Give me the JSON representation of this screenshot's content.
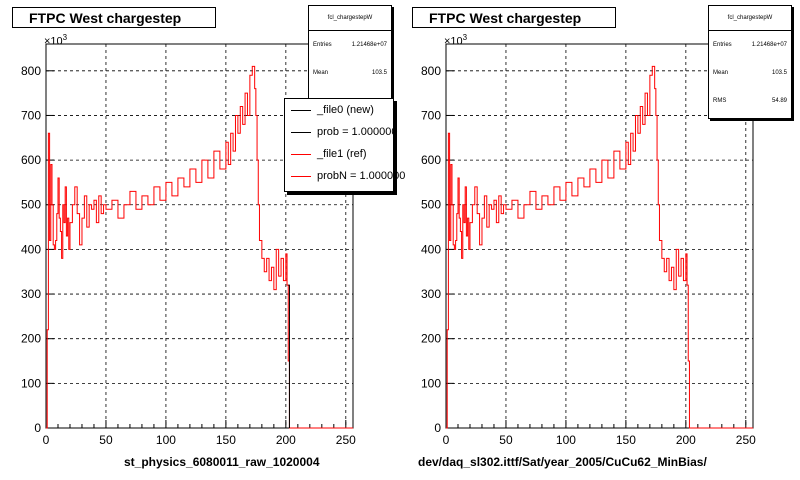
{
  "panels": [
    {
      "title": "FTPC West chargestep",
      "x_label": "st_physics_6080011_raw_1020004",
      "exponent_label": "×10",
      "exponent_sup": "3",
      "stats": {
        "name": "fcl_chargestepW",
        "rows": [
          {
            "label": "Entries",
            "value": "1.21468e+07"
          },
          {
            "label": "Mean",
            "value": "103.5"
          }
        ]
      },
      "legend": [
        {
          "label": "_file0 (new)",
          "color": "#000000"
        },
        {
          "label": "prob = 1.000000",
          "color": "#000000"
        },
        {
          "label": "_file1 (ref)",
          "color": "#ff0000"
        },
        {
          "label": "probN = 1.000000",
          "color": "#ff0000"
        }
      ]
    },
    {
      "title": "FTPC West chargestep",
      "x_label": "dev/daq_sl302.ittf/Sat/year_2005/CuCu62_MinBias/",
      "exponent_label": "×10",
      "exponent_sup": "3",
      "stats": {
        "name": "fcl_chargestepW",
        "rows": [
          {
            "label": "Entries",
            "value": "1.21468e+07"
          },
          {
            "label": "Mean",
            "value": "103.5"
          },
          {
            "label": "RMS",
            "value": "54.89"
          }
        ]
      }
    }
  ],
  "footnote": "",
  "colors": {
    "new": "#000000",
    "ref": "#ff0000",
    "grid": "#000000"
  },
  "chart_data": [
    {
      "type": "line",
      "title": "FTPC West chargestep",
      "xlabel": "st_physics_6080011_raw_1020004",
      "ylabel": "",
      "xlim": [
        0,
        256
      ],
      "ylim": [
        0,
        860
      ],
      "xticks": [
        0,
        50,
        100,
        150,
        200,
        250
      ],
      "yticks": [
        0,
        100,
        200,
        300,
        400,
        500,
        600,
        700,
        800
      ],
      "y_multiplier": "×10^3",
      "grid": true,
      "legend_position": "top-right",
      "series": [
        {
          "name": "_file1 (ref)",
          "color": "#ff0000",
          "x": [
            0,
            1,
            2,
            3,
            4,
            5,
            6,
            7,
            8,
            9,
            10,
            11,
            12,
            13,
            14,
            15,
            16,
            17,
            18,
            19,
            20,
            22,
            24,
            26,
            28,
            30,
            32,
            34,
            36,
            38,
            40,
            42,
            44,
            46,
            48,
            50,
            55,
            60,
            65,
            70,
            75,
            80,
            85,
            90,
            95,
            100,
            105,
            110,
            115,
            120,
            125,
            130,
            135,
            140,
            145,
            150,
            152,
            154,
            156,
            158,
            160,
            162,
            164,
            166,
            168,
            170,
            172,
            174,
            175,
            176,
            177,
            178,
            180,
            182,
            184,
            186,
            188,
            190,
            192,
            194,
            196,
            198,
            200,
            201,
            202,
            203,
            204,
            210,
            220,
            230,
            240,
            256
          ],
          "values": [
            0,
            220,
            660,
            420,
            590,
            500,
            410,
            400,
            420,
            480,
            560,
            470,
            440,
            380,
            500,
            460,
            540,
            430,
            470,
            400,
            460,
            500,
            540,
            480,
            410,
            470,
            520,
            450,
            500,
            490,
            510,
            460,
            520,
            480,
            500,
            490,
            510,
            470,
            500,
            530,
            490,
            520,
            500,
            540,
            510,
            550,
            520,
            560,
            540,
            580,
            550,
            600,
            560,
            620,
            580,
            640,
            590,
            660,
            620,
            700,
            660,
            720,
            680,
            750,
            700,
            790,
            810,
            760,
            700,
            600,
            500,
            420,
            380,
            350,
            380,
            330,
            360,
            310,
            400,
            340,
            380,
            330,
            390,
            320,
            150,
            0,
            0,
            0,
            0,
            0,
            0,
            0
          ]
        },
        {
          "name": "_file0 (new)",
          "color": "#000000",
          "x": [
            202,
            203
          ],
          "values": [
            320,
            0
          ]
        }
      ]
    },
    {
      "type": "line",
      "title": "FTPC West chargestep",
      "xlabel": "dev/daq_sl302.ittf/Sat/year_2005/CuCu62_MinBias/",
      "ylabel": "",
      "xlim": [
        0,
        256
      ],
      "ylim": [
        0,
        860
      ],
      "xticks": [
        0,
        50,
        100,
        150,
        200,
        250
      ],
      "yticks": [
        0,
        100,
        200,
        300,
        400,
        500,
        600,
        700,
        800
      ],
      "y_multiplier": "×10^3",
      "grid": true,
      "series": [
        {
          "name": "",
          "color": "#ff0000",
          "x": [
            0,
            1,
            2,
            3,
            4,
            5,
            6,
            7,
            8,
            9,
            10,
            11,
            12,
            13,
            14,
            15,
            16,
            17,
            18,
            19,
            20,
            22,
            24,
            26,
            28,
            30,
            32,
            34,
            36,
            38,
            40,
            42,
            44,
            46,
            48,
            50,
            55,
            60,
            65,
            70,
            75,
            80,
            85,
            90,
            95,
            100,
            105,
            110,
            115,
            120,
            125,
            130,
            135,
            140,
            145,
            150,
            152,
            154,
            156,
            158,
            160,
            162,
            164,
            166,
            168,
            170,
            172,
            174,
            175,
            176,
            177,
            178,
            180,
            182,
            184,
            186,
            188,
            190,
            192,
            194,
            196,
            198,
            200,
            201,
            202,
            203,
            204,
            210,
            220,
            230,
            240,
            256
          ],
          "values": [
            0,
            220,
            660,
            420,
            590,
            500,
            410,
            400,
            420,
            480,
            560,
            470,
            440,
            380,
            500,
            460,
            540,
            430,
            470,
            400,
            460,
            500,
            540,
            480,
            410,
            470,
            520,
            450,
            500,
            490,
            510,
            460,
            520,
            480,
            500,
            490,
            510,
            470,
            500,
            530,
            490,
            520,
            500,
            540,
            510,
            550,
            520,
            560,
            540,
            580,
            550,
            600,
            560,
            620,
            580,
            640,
            590,
            660,
            620,
            700,
            660,
            720,
            680,
            750,
            700,
            790,
            810,
            760,
            700,
            600,
            500,
            420,
            380,
            350,
            380,
            330,
            360,
            310,
            400,
            340,
            380,
            330,
            390,
            320,
            150,
            0,
            0,
            0,
            0,
            0,
            0,
            0
          ]
        }
      ]
    }
  ]
}
